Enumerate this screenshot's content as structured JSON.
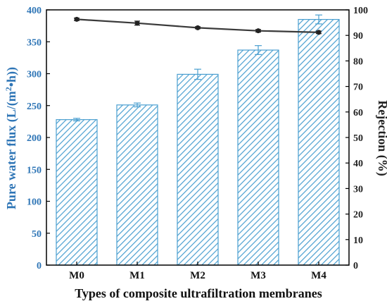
{
  "chart_data": {
    "type": "bar",
    "xlabel": "Types of composite ultrafiltration membranes",
    "ylabel_left_main": "Pure water flux (L/(m",
    "ylabel_left_sup": "2",
    "ylabel_left_tail": "•h))",
    "ylabel_right": "Rejection (%)",
    "categories": [
      "M0",
      "M1",
      "M2",
      "M3",
      "M4"
    ],
    "ylim_left": [
      0,
      400
    ],
    "ylim_right": [
      0,
      100
    ],
    "yticks_left": [
      "0",
      "50",
      "100",
      "150",
      "200",
      "250",
      "300",
      "350",
      "400"
    ],
    "yticks_right": [
      "0",
      "10",
      "20",
      "30",
      "40",
      "50",
      "60",
      "70",
      "80",
      "90",
      "100"
    ],
    "series": [
      {
        "axis": "left",
        "style": "hatched-bar",
        "values": [
          228,
          251,
          299,
          337,
          385
        ],
        "errors": [
          2,
          3,
          8,
          7,
          7
        ],
        "color": "#4a9fd0"
      },
      {
        "axis": "right",
        "style": "line-markers",
        "values": [
          96.3,
          94.8,
          93.0,
          91.8,
          91.2
        ],
        "errors": [
          0.5,
          0.8,
          0.4,
          0.5,
          0.5
        ],
        "color": "#3a3a3a"
      }
    ],
    "colors": {
      "left_axis": "#2e75b6",
      "right_axis": "#222222",
      "frame": "#000000"
    },
    "grid": false
  }
}
